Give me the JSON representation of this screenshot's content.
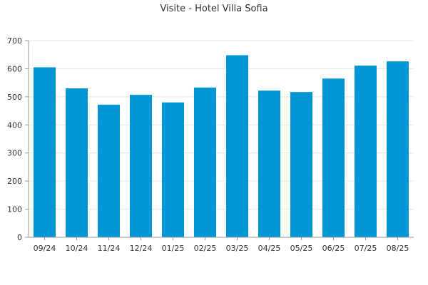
{
  "chart_data": {
    "type": "bar",
    "title": "Visite - Hotel Villa Sofia",
    "xlabel": "",
    "ylabel": "",
    "categories": [
      "09/24",
      "10/24",
      "11/24",
      "12/24",
      "01/25",
      "02/25",
      "03/25",
      "04/25",
      "05/25",
      "06/25",
      "07/25",
      "08/25"
    ],
    "values": [
      605,
      530,
      472,
      507,
      480,
      533,
      648,
      522,
      517,
      565,
      611,
      626
    ],
    "ylim": [
      0,
      700
    ],
    "yticks": [
      0,
      100,
      200,
      300,
      400,
      500,
      600,
      700
    ],
    "grid": true,
    "bar_color": "#0096d6",
    "grid_color": "#e6e6e6",
    "axis_color": "#999999"
  }
}
